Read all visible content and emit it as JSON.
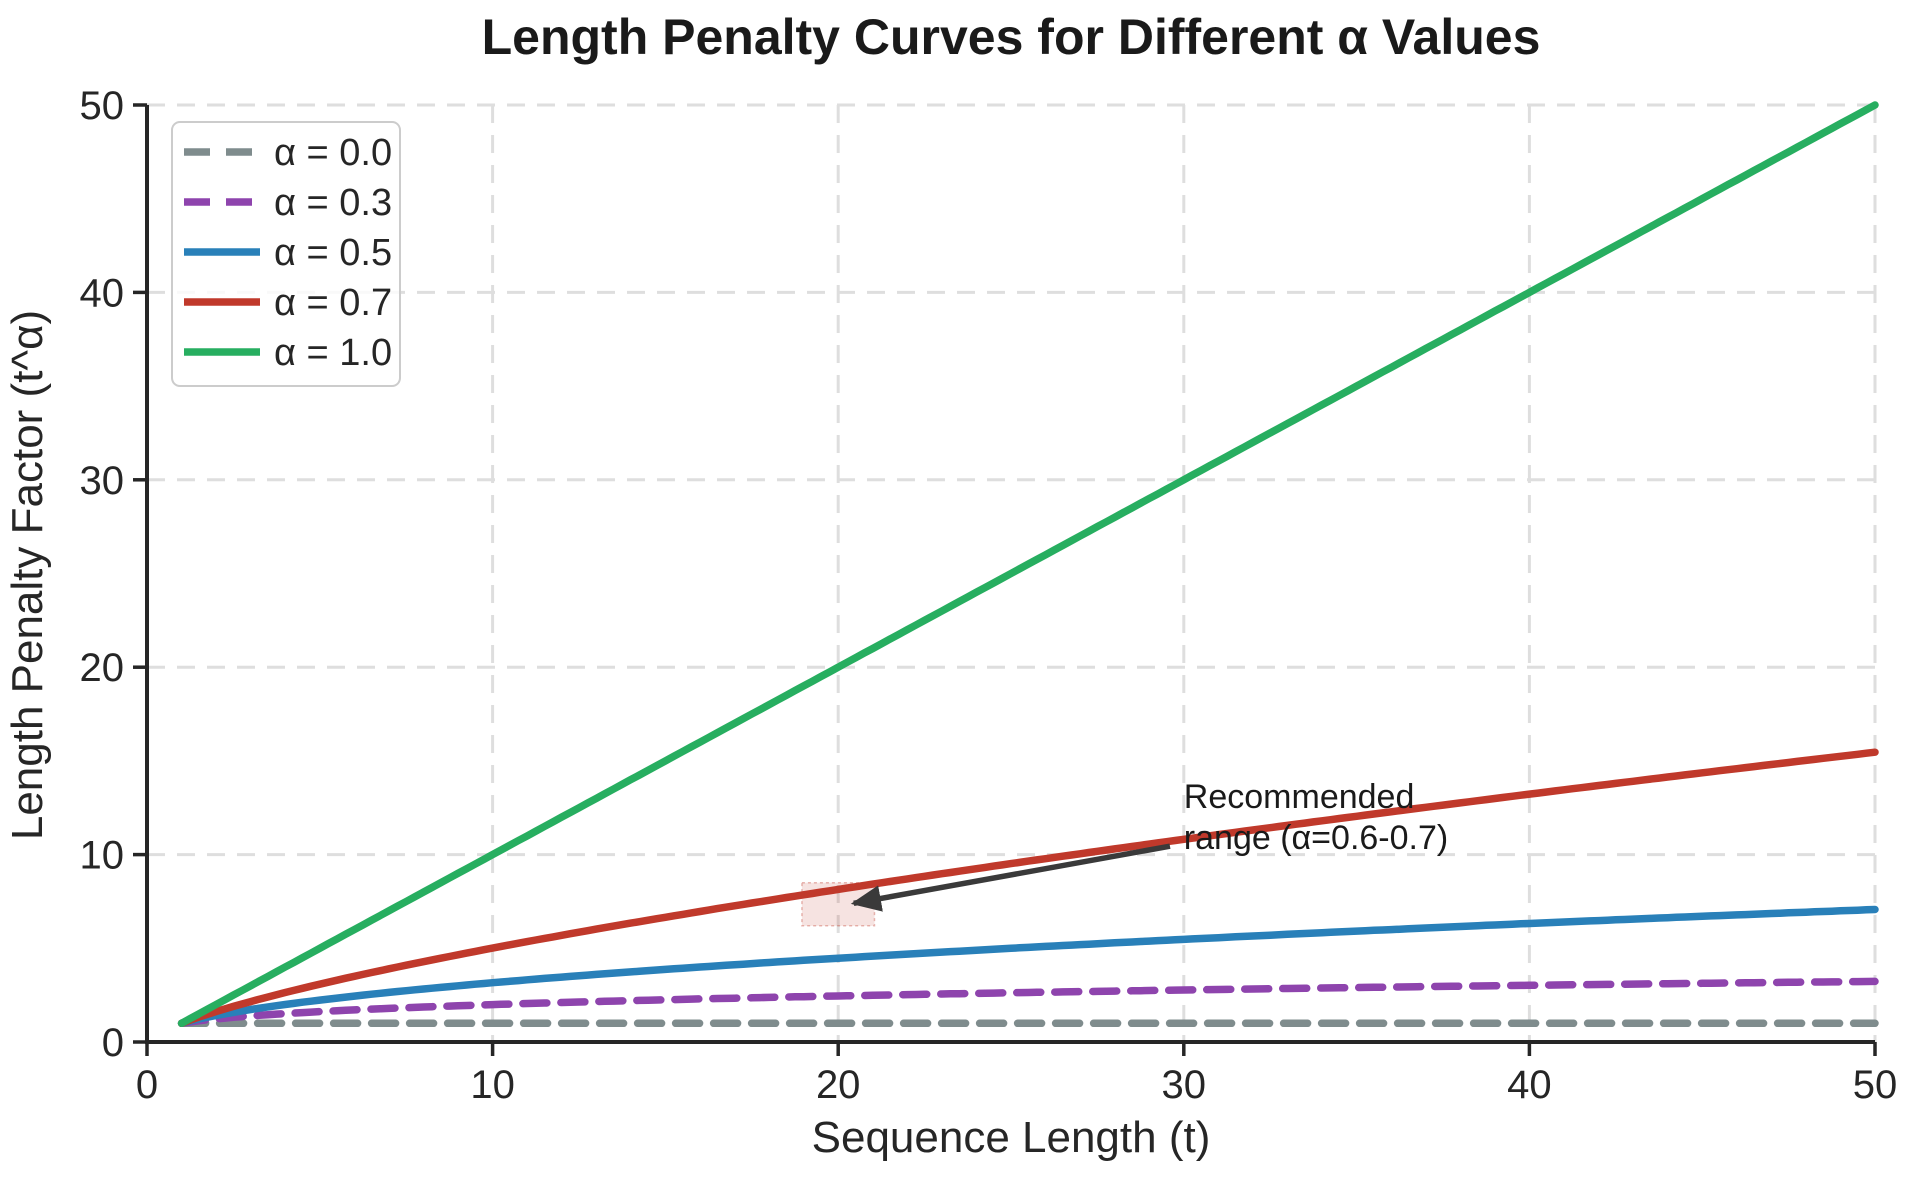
{
  "figure": {
    "background": "#ffffff"
  },
  "chart_data": {
    "type": "line",
    "title": "Length Penalty Curves for Different α Values",
    "xlabel": "Sequence Length (t)",
    "ylabel": "Length Penalty Factor (t^α)",
    "xlim": [
      0,
      50
    ],
    "ylim": [
      0,
      50
    ],
    "xticks": [
      0,
      10,
      20,
      30,
      40,
      50
    ],
    "yticks": [
      0,
      10,
      20,
      30,
      40,
      50
    ],
    "grid": true,
    "legend_position": "upper-left",
    "formula": "y = t^α",
    "x_start": 1,
    "x_end": 50,
    "x_samples": [
      1,
      2,
      5,
      10,
      15,
      20,
      25,
      30,
      35,
      40,
      45,
      50
    ],
    "series": [
      {
        "name": "α = 0.0",
        "alpha": 0.0,
        "color": "#7f8c8d",
        "dash": true,
        "values": [
          1,
          1,
          1,
          1,
          1,
          1,
          1,
          1,
          1,
          1,
          1,
          1
        ]
      },
      {
        "name": "α = 0.3",
        "alpha": 0.3,
        "color": "#8e44ad",
        "dash": true,
        "values": [
          1,
          1.23,
          1.62,
          2.0,
          2.25,
          2.46,
          2.63,
          2.77,
          2.9,
          3.02,
          3.13,
          3.23
        ]
      },
      {
        "name": "α = 0.5",
        "alpha": 0.5,
        "color": "#2980b9",
        "dash": false,
        "values": [
          1,
          1.41,
          2.24,
          3.16,
          3.87,
          4.47,
          5.0,
          5.48,
          5.92,
          6.32,
          6.71,
          7.07
        ]
      },
      {
        "name": "α = 0.7",
        "alpha": 0.7,
        "color": "#c0392b",
        "dash": false,
        "values": [
          1,
          1.62,
          3.09,
          5.01,
          6.66,
          8.14,
          9.52,
          10.81,
          12.04,
          13.22,
          14.36,
          15.46
        ]
      },
      {
        "name": "α = 1.0",
        "alpha": 1.0,
        "color": "#27ae60",
        "dash": false,
        "values": [
          1,
          2,
          5,
          10,
          15,
          20,
          25,
          30,
          35,
          40,
          45,
          50
        ]
      }
    ],
    "annotation": {
      "text_lines": [
        "Recommended",
        "range (α=0.6-0.7)"
      ],
      "text_x": 30.0,
      "text_y": 12.5,
      "arrow": {
        "from_x": 29.6,
        "from_y": 10.45,
        "to_x": 20.45,
        "to_y": 7.4
      },
      "highlight_box": {
        "x0": 18.95,
        "x1": 21.05,
        "y0": 6.2,
        "y1": 8.5,
        "fill": "#c0392b",
        "fill_opacity": 0.14,
        "border": "#c0392b",
        "border_opacity": 0.35
      }
    },
    "colors": {
      "grid": "#dedede",
      "spine": "#262626",
      "tick": "#262626",
      "arrow": "#3a3a3a",
      "legend_border": "#cccccc",
      "legend_bg": "rgba(255,255,255,0.82)"
    }
  }
}
